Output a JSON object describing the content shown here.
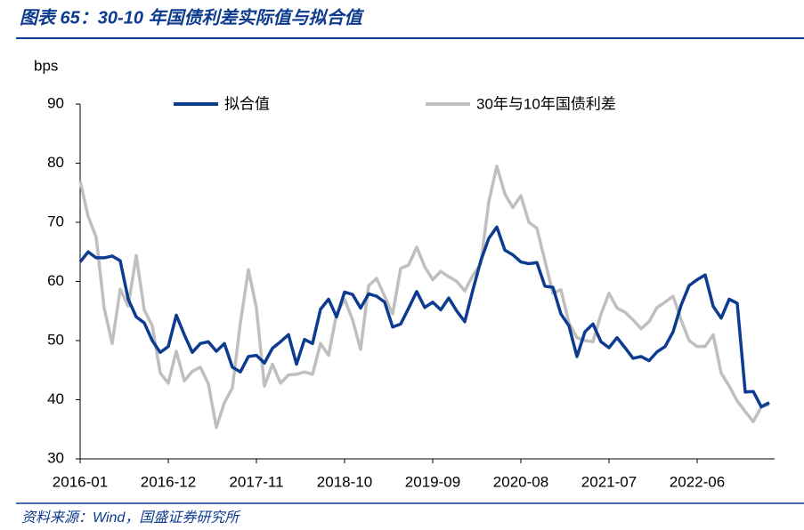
{
  "chart_data": {
    "type": "line",
    "title": "图表 65：30-10 年国债利差实际值与拟合值",
    "y_label": "bps",
    "source": "资料来源：Wind，国盛证券研究所",
    "categories": [
      "2016-01",
      null,
      null,
      null,
      null,
      null,
      null,
      null,
      null,
      null,
      null,
      "2016-12",
      null,
      null,
      null,
      null,
      null,
      null,
      null,
      null,
      null,
      null,
      "2017-11",
      null,
      null,
      null,
      null,
      null,
      null,
      null,
      null,
      null,
      null,
      "2018-10",
      null,
      null,
      null,
      null,
      null,
      null,
      null,
      null,
      null,
      null,
      "2019-09",
      null,
      null,
      null,
      null,
      null,
      null,
      null,
      null,
      null,
      null,
      "2020-08",
      null,
      null,
      null,
      null,
      null,
      null,
      null,
      null,
      null,
      null,
      "2021-07",
      null,
      null,
      null,
      null,
      null,
      null,
      null,
      null,
      null,
      null,
      "2022-06",
      null,
      null,
      null,
      null,
      null,
      null,
      null,
      null,
      null
    ],
    "series": [
      {
        "name": "拟合值",
        "color": "#0d3b8f",
        "values": [
          63.3,
          65,
          64,
          64,
          64.3,
          63.5,
          57,
          54,
          53,
          50,
          48,
          49,
          54.3,
          51,
          48,
          49.5,
          49.8,
          48.2,
          49.5,
          45.5,
          44.7,
          47.3,
          47.5,
          46.2,
          48.7,
          49.8,
          51,
          46,
          50.2,
          49.5,
          55.3,
          57,
          54,
          58.2,
          57.8,
          55.5,
          57.9,
          57.5,
          56.5,
          52.3,
          52.8,
          55.5,
          58.3,
          55.6,
          56.5,
          55.2,
          57.2,
          55,
          53.2,
          58.5,
          63.5,
          67.3,
          69.2,
          65.3,
          64.5,
          63.3,
          63,
          63.2,
          59.2,
          59,
          54.5,
          52.5,
          47.3,
          51.5,
          52.8,
          49.8,
          48.8,
          50.5,
          48.8,
          47,
          47.3,
          46.6,
          48.1,
          49,
          51.5,
          56,
          59.3,
          60.3,
          61.1,
          55.8,
          53.8,
          57,
          56.3,
          41.3,
          41.4,
          38.8,
          39.5
        ]
      },
      {
        "name": "30年与10年国债利差",
        "color": "#bfbfbf",
        "values": [
          77,
          71,
          67.5,
          55.5,
          49.5,
          58.7,
          55.8,
          64.4,
          55.2,
          52.5,
          44.5,
          42.8,
          48.2,
          43.2,
          44.8,
          45.5,
          42.7,
          35.3,
          39.5,
          42,
          53,
          62,
          55.5,
          42.3,
          46,
          42.8,
          44.2,
          44.3,
          44.7,
          44.3,
          49.5,
          47.5,
          54.5,
          57,
          53.5,
          48.5,
          59.3,
          60.5,
          57.5,
          54.5,
          62.2,
          62.8,
          65.8,
          62.5,
          60.3,
          61.7,
          60.8,
          60,
          58.4,
          61,
          63,
          73.5,
          79.5,
          74.8,
          72.5,
          74.5,
          70,
          69,
          63.5,
          58,
          58.6,
          53,
          50.5,
          50,
          49.8,
          54.5,
          58,
          55.5,
          54.8,
          53.5,
          52,
          53.2,
          55.6,
          56.5,
          57.5,
          53.5,
          50,
          49,
          49,
          51,
          44.5,
          42.3,
          39.8,
          38,
          36.3,
          38.8,
          39.2
        ]
      }
    ],
    "ylim": [
      30,
      90
    ],
    "yticks": [
      30,
      40,
      50,
      60,
      70,
      80,
      90
    ],
    "legend": "top"
  }
}
